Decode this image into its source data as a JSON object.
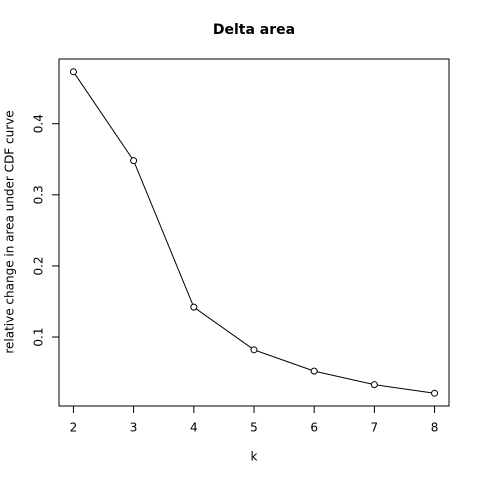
{
  "chart_data": {
    "type": "line",
    "title": "Delta area",
    "x_label": "k",
    "y_label": "relative change in area under CDF curve",
    "x": [
      2,
      3,
      4,
      5,
      6,
      7,
      8
    ],
    "values": [
      0.473,
      0.348,
      0.142,
      0.082,
      0.052,
      0.033,
      0.021
    ],
    "color": "#000000",
    "xlim": [
      1.76,
      8.24
    ],
    "xticks": [
      2,
      3,
      4,
      5,
      6,
      7,
      8
    ],
    "ylim": [
      0.003,
      0.491
    ],
    "yticks": [
      0.1,
      0.2,
      0.3,
      0.4
    ]
  }
}
